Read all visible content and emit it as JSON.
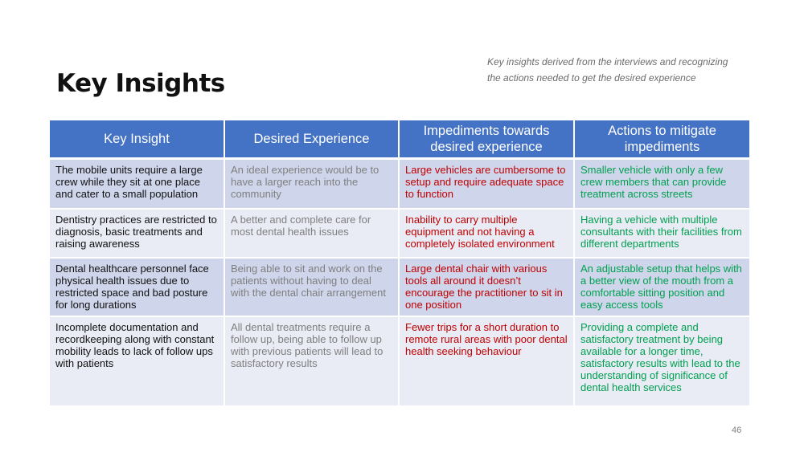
{
  "slide": {
    "title": "Key Insights",
    "subtitle": "Key insights derived from the interviews and recognizing the actions needed to get the desired experience",
    "page_number": "46"
  },
  "colors": {
    "header_bg": "#4472c4",
    "row_odd_bg": "#cfd5ea",
    "row_even_bg": "#e9ebf5",
    "insight_text": "#111111",
    "desired_text": "#7f7f7f",
    "impediment_text": "#c00000",
    "action_text": "#00a050"
  },
  "table": {
    "headers": [
      "Key Insight",
      "Desired Experience",
      "Impediments towards desired experience",
      "Actions to mitigate impediments"
    ],
    "rows": [
      {
        "insight": "The mobile units require a large crew while they sit at one place and cater to a small population",
        "desired": "An ideal experience would be to have a larger reach into the community",
        "impediment": "Large vehicles are cumbersome to setup and require adequate space to function",
        "action": "Smaller vehicle with only a few crew members that can provide treatment across streets"
      },
      {
        "insight": "Dentistry practices are restricted to diagnosis, basic treatments and raising awareness",
        "desired": "A better and complete care for most dental health issues",
        "impediment": "Inability to carry multiple equipment and not having a completely isolated environment",
        "action": "Having a vehicle with multiple consultants with their facilities from different departments"
      },
      {
        "insight": "Dental healthcare personnel face physical health issues due to restricted space and bad posture for long durations",
        "desired": "Being able to sit and work on the patients without having to deal with the dental chair arrangement",
        "impediment": "Large dental chair with various tools all around it doesn’t encourage the practitioner to sit in one position",
        "action": "An adjustable setup that helps with a better view of the mouth from a comfortable sitting position and easy access tools"
      },
      {
        "insight": "Incomplete documentation and recordkeeping along with constant mobility leads to lack of follow ups with patients",
        "desired": "All dental treatments require a follow up, being able to follow up with previous patients will lead to satisfactory results",
        "impediment": "Fewer trips for a short duration to remote rural areas with poor dental health seeking behaviour",
        "action": "Providing a complete and satisfactory treatment by being available for a longer time, satisfactory results with lead to the understanding of significance of dental health services"
      }
    ]
  }
}
